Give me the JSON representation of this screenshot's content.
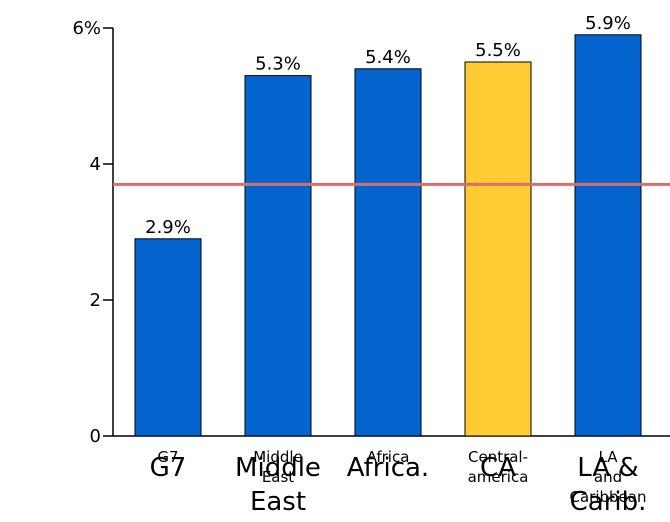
{
  "chart_data": {
    "type": "bar",
    "categories": [
      {
        "short": [
          "G7"
        ],
        "small": [
          "G7"
        ]
      },
      {
        "short": [
          "Middle",
          "East"
        ],
        "small": [
          "Middle",
          "East"
        ]
      },
      {
        "short": [
          "Africa."
        ],
        "small": [
          "Africa"
        ]
      },
      {
        "short": [
          "CA"
        ],
        "small": [
          "Central-",
          "america"
        ]
      },
      {
        "short": [
          "LA &",
          "Carib."
        ],
        "small": [
          "LA",
          "and",
          "Caribbean"
        ]
      }
    ],
    "values": [
      2.9,
      5.3,
      5.4,
      5.5,
      5.9
    ],
    "value_labels": [
      "2.9%",
      "5.3%",
      "5.4%",
      "5.5%",
      "5.9%"
    ],
    "highlight_index": 3,
    "reference_line": 3.7,
    "ylim": [
      0,
      6
    ],
    "yticks": [
      0,
      2,
      4,
      6
    ],
    "ytick_labels": [
      "0",
      "2",
      "4",
      "6%"
    ],
    "grid": false,
    "colors": {
      "bar": "#0565cf",
      "highlight": "#ffcc33",
      "reference_line": "#d47070",
      "axis": "#000000"
    }
  }
}
